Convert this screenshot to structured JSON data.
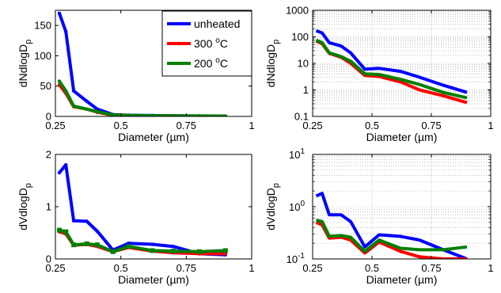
{
  "chart_data": [
    {
      "type": "line",
      "panel": "top-left",
      "yscale": "linear",
      "xlim": [
        0.25,
        1
      ],
      "ylim": [
        0,
        175
      ],
      "xticks": [
        0.25,
        0.5,
        0.75,
        1
      ],
      "xtick_labels": [
        "0.25",
        "0.5",
        "0.75",
        "1"
      ],
      "yticks": [
        0,
        50,
        100,
        150
      ],
      "ytick_labels": [
        "0",
        "50",
        "100",
        "150"
      ],
      "xlabel": "Diameter (µm)",
      "ylabel_main": "dNdlogD",
      "ylabel_sub": "p",
      "grid": false,
      "legend": {
        "placement": "top-right",
        "entries": [
          {
            "main": "unheated",
            "sup": "",
            "tail": ""
          },
          {
            "main": "300 ",
            "sup": "o",
            "tail": "C"
          },
          {
            "main": "200 ",
            "sup": "o",
            "tail": "C"
          }
        ]
      },
      "series": [
        {
          "color": "#0000ff",
          "marker": "dot",
          "x": [
            0.265,
            0.29,
            0.32,
            0.37,
            0.41,
            0.47,
            0.53,
            0.62,
            0.7,
            0.8,
            0.9
          ],
          "y": [
            170,
            140,
            42,
            25,
            12,
            3,
            2,
            1.5,
            1,
            0.7,
            0.5
          ]
        },
        {
          "color": "#ff0000",
          "marker": "dot",
          "x": [
            0.265,
            0.29,
            0.32,
            0.37,
            0.41,
            0.47,
            0.53,
            0.62,
            0.7,
            0.8,
            0.9
          ],
          "y": [
            52,
            38,
            16,
            12,
            7,
            2,
            1.5,
            1,
            0.8,
            0.5,
            0.4
          ]
        },
        {
          "color": "#008000",
          "marker": "dot",
          "x": [
            0.265,
            0.29,
            0.32,
            0.37,
            0.41,
            0.47,
            0.53,
            0.62,
            0.7,
            0.8,
            0.9
          ],
          "y": [
            58,
            42,
            17,
            12,
            8,
            2.5,
            1.8,
            1.2,
            1,
            0.8,
            0.6
          ]
        }
      ]
    },
    {
      "type": "line",
      "panel": "top-right",
      "yscale": "log",
      "xlim": [
        0.25,
        1
      ],
      "ylim": [
        0.1,
        1000
      ],
      "xticks": [
        0.25,
        0.5,
        0.75,
        1
      ],
      "xtick_labels": [
        "0.25",
        "0.5",
        "0.75",
        "1"
      ],
      "yticks": [
        0.1,
        1,
        10,
        100,
        1000
      ],
      "ytick_labels": [
        "0.1",
        "1",
        "10",
        "100",
        "1000"
      ],
      "xlabel": "Diameter (µm)",
      "ylabel_main": "dNdlogD",
      "ylabel_sub": "p",
      "grid": true,
      "series": [
        {
          "color": "#0000ff",
          "marker": "none",
          "x": [
            0.265,
            0.29,
            0.32,
            0.37,
            0.41,
            0.47,
            0.53,
            0.62,
            0.7,
            0.8,
            0.9
          ],
          "y": [
            170,
            140,
            60,
            45,
            25,
            6,
            6.5,
            5,
            3,
            1.5,
            0.8
          ]
        },
        {
          "color": "#ff0000",
          "marker": "none",
          "x": [
            0.265,
            0.29,
            0.32,
            0.37,
            0.41,
            0.47,
            0.53,
            0.62,
            0.7,
            0.8,
            0.9
          ],
          "y": [
            70,
            55,
            24,
            17,
            10,
            3.5,
            3.2,
            2.0,
            1.0,
            0.6,
            0.33
          ]
        },
        {
          "color": "#008000",
          "marker": "none",
          "x": [
            0.265,
            0.29,
            0.32,
            0.37,
            0.41,
            0.47,
            0.53,
            0.62,
            0.7,
            0.8,
            0.9
          ],
          "y": [
            75,
            60,
            25,
            18,
            12,
            4,
            3.8,
            2.5,
            1.6,
            0.8,
            0.5
          ]
        }
      ]
    },
    {
      "type": "line",
      "panel": "bottom-left",
      "yscale": "linear",
      "xlim": [
        0.25,
        1
      ],
      "ylim": [
        0,
        2
      ],
      "xticks": [
        0.25,
        0.5,
        0.75,
        1
      ],
      "xtick_labels": [
        "0.25",
        "0.5",
        "0.75",
        "1"
      ],
      "yticks": [
        0,
        1,
        2
      ],
      "ytick_labels": [
        "0",
        "1",
        "2"
      ],
      "xlabel": "Diameter (µm)",
      "ylabel_main": "dVdlogD",
      "ylabel_sub": "p",
      "grid": false,
      "series": [
        {
          "color": "#0000ff",
          "marker": "dot",
          "x": [
            0.265,
            0.29,
            0.32,
            0.37,
            0.41,
            0.47,
            0.53,
            0.62,
            0.7,
            0.8,
            0.9
          ],
          "y": [
            1.65,
            1.8,
            0.73,
            0.72,
            0.53,
            0.17,
            0.3,
            0.28,
            0.24,
            0.1,
            0.08
          ]
        },
        {
          "color": "#ff0000",
          "marker": "dot",
          "x": [
            0.265,
            0.29,
            0.32,
            0.37,
            0.41,
            0.47,
            0.53,
            0.62,
            0.7,
            0.8,
            0.9
          ],
          "y": [
            0.52,
            0.48,
            0.26,
            0.28,
            0.24,
            0.14,
            0.22,
            0.15,
            0.12,
            0.1,
            0.1
          ]
        },
        {
          "color": "#008000",
          "marker": "square",
          "x": [
            0.265,
            0.29,
            0.32,
            0.37,
            0.41,
            0.47,
            0.53,
            0.62,
            0.7,
            0.8,
            0.9
          ],
          "y": [
            0.55,
            0.52,
            0.27,
            0.29,
            0.27,
            0.14,
            0.24,
            0.16,
            0.15,
            0.14,
            0.16
          ]
        }
      ]
    },
    {
      "type": "line",
      "panel": "bottom-right",
      "yscale": "log",
      "xlim": [
        0.25,
        1
      ],
      "ylim_exp": [
        -1,
        1
      ],
      "xticks": [
        0.25,
        0.5,
        0.75,
        1
      ],
      "xtick_labels": [
        "0.25",
        "0.5",
        "0.75",
        "1"
      ],
      "yticks_exp": [
        -1,
        0,
        1
      ],
      "ytick_base": "10",
      "xlabel": "Diameter (µm)",
      "ylabel_main": "dVdlogD",
      "ylabel_sub": "p",
      "grid": true,
      "series": [
        {
          "color": "#0000ff",
          "marker": "none",
          "x": [
            0.265,
            0.29,
            0.32,
            0.37,
            0.41,
            0.47,
            0.53,
            0.62,
            0.7,
            0.8,
            0.9
          ],
          "y": [
            1.6,
            1.8,
            0.7,
            0.7,
            0.52,
            0.17,
            0.29,
            0.27,
            0.23,
            0.15,
            0.09
          ]
        },
        {
          "color": "#ff0000",
          "marker": "none",
          "x": [
            0.265,
            0.29,
            0.32,
            0.37,
            0.41,
            0.47,
            0.53,
            0.62,
            0.7,
            0.8,
            0.9
          ],
          "y": [
            0.5,
            0.45,
            0.25,
            0.26,
            0.23,
            0.13,
            0.21,
            0.14,
            0.11,
            0.1,
            0.1
          ]
        },
        {
          "color": "#008000",
          "marker": "none",
          "x": [
            0.265,
            0.29,
            0.32,
            0.37,
            0.41,
            0.47,
            0.53,
            0.62,
            0.7,
            0.8,
            0.9
          ],
          "y": [
            0.55,
            0.52,
            0.27,
            0.28,
            0.26,
            0.14,
            0.23,
            0.16,
            0.15,
            0.15,
            0.17
          ]
        }
      ]
    }
  ]
}
